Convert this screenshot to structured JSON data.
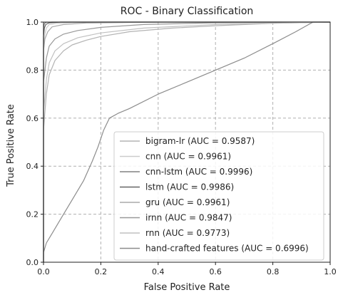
{
  "chart_data": {
    "type": "line",
    "title": "ROC - Binary Classification",
    "xlabel": "False Positive Rate",
    "ylabel": "True Positive Rate",
    "xlim": [
      0,
      1
    ],
    "ylim": [
      0,
      1
    ],
    "xticks": [
      "0.0",
      "0.2",
      "0.4",
      "0.6",
      "0.8",
      "1.0"
    ],
    "yticks": [
      "0.0",
      "0.2",
      "0.4",
      "0.6",
      "0.8",
      "1.0"
    ],
    "grid": true,
    "legend_position": "lower-right",
    "series": [
      {
        "name": "bigram-lr (AUC = 0.9587)",
        "color": "#b3b3b3",
        "x": [
          0,
          0.0,
          0.01,
          0.02,
          0.04,
          0.07,
          0.1,
          0.15,
          0.2,
          0.3,
          0.45,
          0.6,
          0.8,
          1.0
        ],
        "y": [
          0,
          0.55,
          0.7,
          0.78,
          0.84,
          0.88,
          0.905,
          0.925,
          0.94,
          0.96,
          0.975,
          0.985,
          0.995,
          1.0
        ]
      },
      {
        "name": "cnn (AUC = 0.9961)",
        "color": "#cccccc",
        "x": [
          0,
          0.0,
          0.005,
          0.01,
          0.02,
          0.05,
          0.1,
          0.2,
          1.0
        ],
        "y": [
          0,
          0.9,
          0.95,
          0.975,
          0.99,
          0.995,
          0.998,
          1.0,
          1.0
        ]
      },
      {
        "name": "cnn-lstm (AUC = 0.9996)",
        "color": "#808080",
        "x": [
          0,
          0.0,
          0.002,
          0.005,
          0.01,
          0.03,
          1.0
        ],
        "y": [
          0,
          0.97,
          0.99,
          0.996,
          0.999,
          1.0,
          1.0
        ]
      },
      {
        "name": "lstm (AUC = 0.9986)",
        "color": "#666666",
        "x": [
          0,
          0.0,
          0.003,
          0.008,
          0.02,
          0.06,
          1.0
        ],
        "y": [
          0,
          0.94,
          0.975,
          0.99,
          0.997,
          1.0,
          1.0
        ]
      },
      {
        "name": "gru (AUC = 0.9961)",
        "color": "#aaaaaa",
        "x": [
          0,
          0.0,
          0.005,
          0.015,
          0.03,
          0.07,
          0.15,
          0.4,
          1.0
        ],
        "y": [
          0,
          0.88,
          0.93,
          0.96,
          0.98,
          0.99,
          0.996,
          1.0,
          1.0
        ]
      },
      {
        "name": "irnn (AUC = 0.9847)",
        "color": "#999999",
        "x": [
          0,
          0.0,
          0.01,
          0.02,
          0.04,
          0.07,
          0.12,
          0.2,
          0.35,
          0.6,
          1.0
        ],
        "y": [
          0,
          0.75,
          0.85,
          0.9,
          0.93,
          0.95,
          0.965,
          0.978,
          0.99,
          0.997,
          1.0
        ]
      },
      {
        "name": "rnn (AUC = 0.9773)",
        "color": "#c0c0c0",
        "x": [
          0,
          0.0,
          0.01,
          0.02,
          0.04,
          0.07,
          0.12,
          0.2,
          0.35,
          0.6,
          1.0
        ],
        "y": [
          0,
          0.62,
          0.76,
          0.83,
          0.88,
          0.91,
          0.935,
          0.955,
          0.975,
          0.99,
          1.0
        ]
      },
      {
        "name": "hand-crafted features (AUC = 0.6996)",
        "color": "#8c8c8c",
        "x": [
          0,
          0.0,
          0.01,
          0.03,
          0.06,
          0.1,
          0.14,
          0.17,
          0.19,
          0.21,
          0.23,
          0.26,
          0.3,
          0.4,
          0.5,
          0.6,
          0.7,
          0.8,
          0.88,
          0.94,
          1.0
        ],
        "y": [
          0,
          0.04,
          0.08,
          0.12,
          0.18,
          0.26,
          0.34,
          0.42,
          0.48,
          0.55,
          0.6,
          0.62,
          0.64,
          0.7,
          0.75,
          0.8,
          0.85,
          0.91,
          0.96,
          1.0,
          1.0
        ]
      }
    ]
  }
}
